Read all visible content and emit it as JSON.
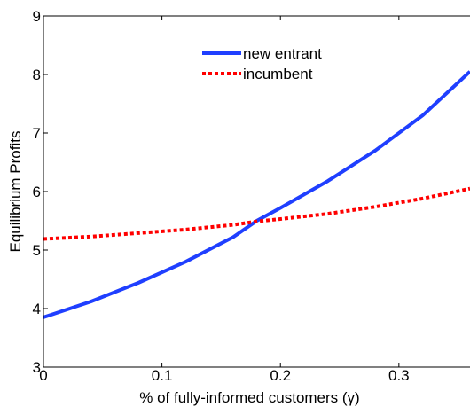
{
  "chart_data": {
    "type": "line",
    "title": "",
    "xlabel": "% of fully-informed customers (γ)",
    "ylabel": "Equilibrium Profits",
    "xlim": [
      0,
      0.36
    ],
    "ylim": [
      3,
      9
    ],
    "xticks": [
      0,
      0.1,
      0.2,
      0.3
    ],
    "xtick_labels": [
      "0",
      "0.1",
      "0.2",
      "0.3"
    ],
    "yticks": [
      3,
      4,
      5,
      6,
      7,
      8,
      9
    ],
    "ytick_labels": [
      "3",
      "4",
      "5",
      "6",
      "7",
      "8",
      "9"
    ],
    "grid": false,
    "legend_position": "top-center",
    "series": [
      {
        "name": "new entrant",
        "color": "#1f3fff",
        "style": "solid",
        "x": [
          0,
          0.04,
          0.08,
          0.12,
          0.16,
          0.18,
          0.2,
          0.24,
          0.28,
          0.32,
          0.36
        ],
        "y": [
          3.85,
          4.12,
          4.44,
          4.8,
          5.22,
          5.5,
          5.72,
          6.18,
          6.7,
          7.3,
          8.05
        ]
      },
      {
        "name": "incumbent",
        "color": "#ff0000",
        "style": "dotted",
        "x": [
          0,
          0.04,
          0.08,
          0.12,
          0.16,
          0.18,
          0.2,
          0.24,
          0.28,
          0.32,
          0.36
        ],
        "y": [
          5.19,
          5.23,
          5.29,
          5.35,
          5.43,
          5.49,
          5.53,
          5.62,
          5.74,
          5.88,
          6.05
        ]
      }
    ]
  }
}
